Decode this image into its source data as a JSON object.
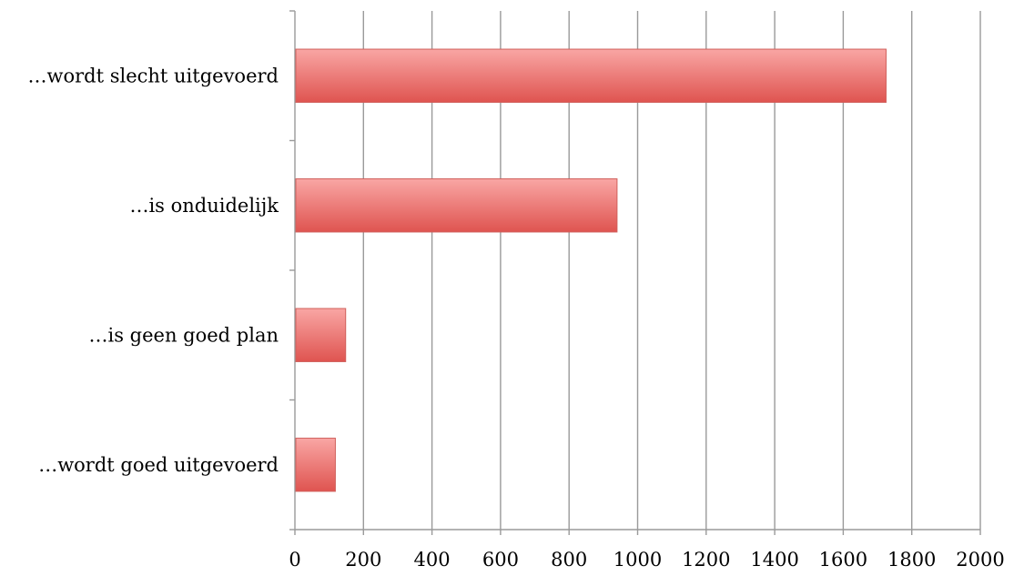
{
  "chart_data": {
    "type": "bar",
    "orientation": "horizontal",
    "categories": [
      "…wordt slecht uitgevoerd",
      "…is onduidelijk",
      "…is geen goed plan",
      "…wordt goed uitgevoerd"
    ],
    "values": [
      1725,
      940,
      148,
      118
    ],
    "xlim": [
      0,
      2000
    ],
    "x_ticks": [
      0,
      200,
      400,
      600,
      800,
      1000,
      1200,
      1400,
      1600,
      1800,
      2000
    ],
    "grid": "vertical",
    "bar_color_light": "#f9a6a4",
    "bar_color_dark": "#df5450",
    "legend": "none",
    "title": "",
    "xlabel": "",
    "ylabel": ""
  }
}
